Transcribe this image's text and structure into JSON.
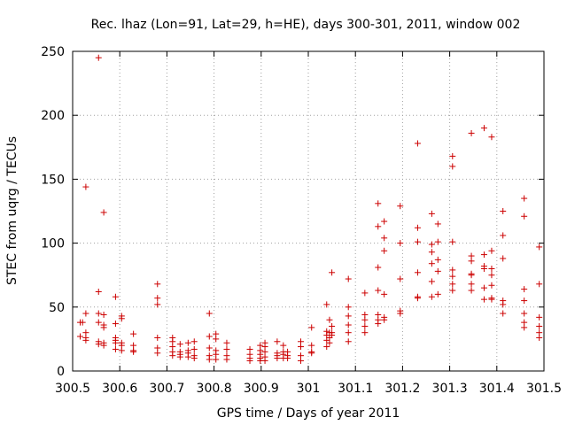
{
  "chart_data": {
    "type": "scatter",
    "title": "Rec. lhaz (Lon=91, Lat=29, h=HE), days 300-301, 2011, window 002",
    "xlabel": "GPS time / Days of year 2011",
    "ylabel": "STEC from uqrg / TECUs",
    "xlim": [
      300.5,
      301.5
    ],
    "ylim": [
      0,
      250
    ],
    "x_ticks": [
      300.5,
      300.6,
      300.7,
      300.8,
      300.9,
      301.0,
      301.1,
      301.2,
      301.3,
      301.4,
      301.5
    ],
    "x_tick_labels": [
      "300.5",
      "300.6",
      "300.7",
      "300.8",
      "300.9",
      "301",
      "301.1",
      "301.2",
      "301.3",
      "301.4",
      "301.5"
    ],
    "y_ticks": [
      0,
      50,
      100,
      150,
      200,
      250
    ],
    "y_tick_labels": [
      "0",
      "50",
      "100",
      "150",
      "200",
      "250"
    ],
    "grid": true,
    "marker": "+",
    "color": "#cc0000",
    "series": [
      {
        "name": "STEC",
        "points": [
          [
            300.516,
            38
          ],
          [
            300.516,
            27
          ],
          [
            300.521,
            38
          ],
          [
            300.528,
            144
          ],
          [
            300.528,
            45
          ],
          [
            300.528,
            30
          ],
          [
            300.528,
            26
          ],
          [
            300.528,
            24
          ],
          [
            300.555,
            245
          ],
          [
            300.555,
            62
          ],
          [
            300.555,
            45
          ],
          [
            300.555,
            38
          ],
          [
            300.555,
            23
          ],
          [
            300.555,
            21
          ],
          [
            300.566,
            124
          ],
          [
            300.566,
            44
          ],
          [
            300.566,
            36
          ],
          [
            300.566,
            34
          ],
          [
            300.566,
            22
          ],
          [
            300.566,
            20
          ],
          [
            300.591,
            58
          ],
          [
            300.591,
            37
          ],
          [
            300.591,
            26
          ],
          [
            300.591,
            24
          ],
          [
            300.591,
            22
          ],
          [
            300.591,
            17
          ],
          [
            300.604,
            43
          ],
          [
            300.604,
            41
          ],
          [
            300.604,
            22
          ],
          [
            300.604,
            20
          ],
          [
            300.604,
            16
          ],
          [
            300.629,
            29
          ],
          [
            300.629,
            20
          ],
          [
            300.629,
            16
          ],
          [
            300.629,
            15
          ],
          [
            300.68,
            68
          ],
          [
            300.68,
            57
          ],
          [
            300.68,
            52
          ],
          [
            300.68,
            26
          ],
          [
            300.68,
            18
          ],
          [
            300.68,
            14
          ],
          [
            300.712,
            26
          ],
          [
            300.712,
            23
          ],
          [
            300.712,
            19
          ],
          [
            300.712,
            15
          ],
          [
            300.712,
            12
          ],
          [
            300.728,
            21
          ],
          [
            300.728,
            15
          ],
          [
            300.728,
            13
          ],
          [
            300.728,
            11
          ],
          [
            300.745,
            22
          ],
          [
            300.745,
            16
          ],
          [
            300.745,
            14
          ],
          [
            300.745,
            11
          ],
          [
            300.758,
            23
          ],
          [
            300.758,
            17
          ],
          [
            300.758,
            12
          ],
          [
            300.758,
            10
          ],
          [
            300.79,
            45
          ],
          [
            300.79,
            27
          ],
          [
            300.79,
            18
          ],
          [
            300.79,
            12
          ],
          [
            300.79,
            9
          ],
          [
            300.804,
            29
          ],
          [
            300.804,
            25
          ],
          [
            300.804,
            16
          ],
          [
            300.804,
            13
          ],
          [
            300.804,
            9
          ],
          [
            300.827,
            22
          ],
          [
            300.827,
            17
          ],
          [
            300.827,
            12
          ],
          [
            300.827,
            9
          ],
          [
            300.876,
            17
          ],
          [
            300.876,
            13
          ],
          [
            300.876,
            10
          ],
          [
            300.876,
            8
          ],
          [
            300.898,
            20
          ],
          [
            300.898,
            16
          ],
          [
            300.898,
            13
          ],
          [
            300.898,
            10
          ],
          [
            300.898,
            8
          ],
          [
            300.908,
            22
          ],
          [
            300.908,
            19
          ],
          [
            300.908,
            15
          ],
          [
            300.908,
            11
          ],
          [
            300.908,
            8
          ],
          [
            300.934,
            23
          ],
          [
            300.934,
            14
          ],
          [
            300.934,
            12
          ],
          [
            300.934,
            10
          ],
          [
            300.947,
            20
          ],
          [
            300.947,
            15
          ],
          [
            300.947,
            13
          ],
          [
            300.947,
            10
          ],
          [
            300.956,
            15
          ],
          [
            300.956,
            12
          ],
          [
            300.956,
            10
          ],
          [
            300.984,
            23
          ],
          [
            300.984,
            19
          ],
          [
            300.984,
            12
          ],
          [
            300.984,
            8
          ],
          [
            301.007,
            34
          ],
          [
            301.007,
            20
          ],
          [
            301.007,
            15
          ],
          [
            301.007,
            14
          ],
          [
            301.039,
            52
          ],
          [
            301.039,
            31
          ],
          [
            301.039,
            28
          ],
          [
            301.039,
            24
          ],
          [
            301.039,
            19
          ],
          [
            301.045,
            40
          ],
          [
            301.045,
            30
          ],
          [
            301.045,
            26
          ],
          [
            301.045,
            22
          ],
          [
            301.05,
            77
          ],
          [
            301.05,
            35
          ],
          [
            301.05,
            30
          ],
          [
            301.05,
            28
          ],
          [
            301.085,
            72
          ],
          [
            301.085,
            50
          ],
          [
            301.085,
            43
          ],
          [
            301.085,
            36
          ],
          [
            301.085,
            30
          ],
          [
            301.085,
            23
          ],
          [
            301.12,
            61
          ],
          [
            301.12,
            44
          ],
          [
            301.12,
            40
          ],
          [
            301.12,
            35
          ],
          [
            301.12,
            30
          ],
          [
            301.148,
            131
          ],
          [
            301.148,
            113
          ],
          [
            301.148,
            81
          ],
          [
            301.148,
            63
          ],
          [
            301.148,
            44
          ],
          [
            301.148,
            40
          ],
          [
            301.148,
            37
          ],
          [
            301.161,
            117
          ],
          [
            301.161,
            104
          ],
          [
            301.161,
            94
          ],
          [
            301.161,
            60
          ],
          [
            301.161,
            42
          ],
          [
            301.161,
            40
          ],
          [
            301.195,
            129
          ],
          [
            301.195,
            100
          ],
          [
            301.195,
            72
          ],
          [
            301.195,
            47
          ],
          [
            301.195,
            45
          ],
          [
            301.232,
            178
          ],
          [
            301.232,
            112
          ],
          [
            301.232,
            101
          ],
          [
            301.232,
            77
          ],
          [
            301.232,
            58
          ],
          [
            301.232,
            57
          ],
          [
            301.262,
            123
          ],
          [
            301.262,
            99
          ],
          [
            301.262,
            93
          ],
          [
            301.262,
            84
          ],
          [
            301.262,
            70
          ],
          [
            301.262,
            58
          ],
          [
            301.275,
            115
          ],
          [
            301.275,
            101
          ],
          [
            301.275,
            87
          ],
          [
            301.275,
            78
          ],
          [
            301.275,
            60
          ],
          [
            301.306,
            168
          ],
          [
            301.306,
            160
          ],
          [
            301.306,
            101
          ],
          [
            301.306,
            79
          ],
          [
            301.306,
            74
          ],
          [
            301.306,
            68
          ],
          [
            301.306,
            63
          ],
          [
            301.346,
            186
          ],
          [
            301.346,
            90
          ],
          [
            301.346,
            86
          ],
          [
            301.346,
            76
          ],
          [
            301.346,
            75
          ],
          [
            301.346,
            68
          ],
          [
            301.346,
            63
          ],
          [
            301.373,
            190
          ],
          [
            301.373,
            91
          ],
          [
            301.373,
            82
          ],
          [
            301.373,
            80
          ],
          [
            301.373,
            65
          ],
          [
            301.373,
            56
          ],
          [
            301.389,
            183
          ],
          [
            301.389,
            94
          ],
          [
            301.389,
            80
          ],
          [
            301.389,
            75
          ],
          [
            301.389,
            67
          ],
          [
            301.389,
            57
          ],
          [
            301.389,
            56
          ],
          [
            301.413,
            125
          ],
          [
            301.413,
            106
          ],
          [
            301.413,
            88
          ],
          [
            301.413,
            55
          ],
          [
            301.413,
            52
          ],
          [
            301.413,
            45
          ],
          [
            301.458,
            135
          ],
          [
            301.458,
            121
          ],
          [
            301.458,
            64
          ],
          [
            301.458,
            55
          ],
          [
            301.458,
            45
          ],
          [
            301.458,
            38
          ],
          [
            301.458,
            34
          ],
          [
            301.49,
            97
          ],
          [
            301.49,
            68
          ],
          [
            301.49,
            42
          ],
          [
            301.49,
            35
          ],
          [
            301.49,
            30
          ],
          [
            301.49,
            26
          ]
        ]
      }
    ]
  }
}
